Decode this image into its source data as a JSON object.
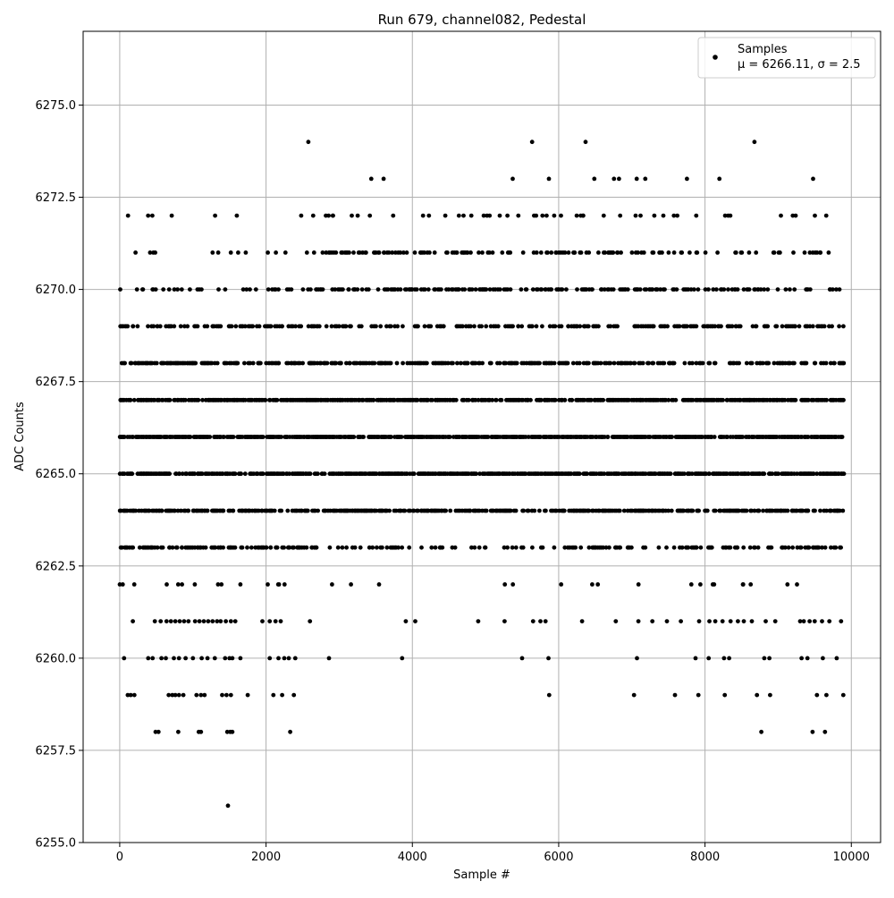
{
  "chart_data": {
    "type": "scatter",
    "title": "Run 679, channel082, Pedestal",
    "xlabel": "Sample #",
    "ylabel": "ADC Counts",
    "xlim": [
      -500,
      10400
    ],
    "ylim": [
      6255.0,
      6277.0
    ],
    "x_ticks": [
      0,
      2000,
      4000,
      6000,
      8000,
      10000
    ],
    "y_ticks": [
      6255.0,
      6257.5,
      6260.0,
      6262.5,
      6265.0,
      6267.5,
      6270.0,
      6272.5,
      6275.0
    ],
    "x_tick_labels": [
      "0",
      "2000",
      "4000",
      "6000",
      "8000",
      "10000"
    ],
    "y_tick_labels": [
      "6255.0",
      "6257.5",
      "6260.0",
      "6262.5",
      "6265.0",
      "6267.5",
      "6270.0",
      "6272.5",
      "6275.0"
    ],
    "grid": true,
    "legend_position": "top-right",
    "series": [
      {
        "name": "Samples",
        "stats_label": "μ = 6266.11, σ = 2.5",
        "color": "#000000",
        "n_samples": 9900,
        "mean": 6266.11,
        "sigma": 2.5,
        "sampled_levels": [
          {
            "y": 6256,
            "x": [
              1480
            ]
          },
          {
            "y": 6258,
            "x": [
              490,
              530,
              800,
              1080,
              1110,
              1470,
              1510,
              1540,
              2330,
              8770,
              9470,
              9640
            ]
          },
          {
            "y": 6259,
            "x": [
              110,
              150,
              200,
              670,
              720,
              760,
              810,
              870,
              1050,
              1110,
              1160,
              1400,
              1460,
              1520,
              1750,
              2100,
              2220,
              2380,
              5870,
              7030,
              7590,
              7910,
              8270,
              8710,
              8890,
              9530,
              9660,
              9890
            ]
          },
          {
            "y": 6260,
            "x": [
              60,
              390,
              450,
              570,
              630,
              740,
              810,
              900,
              1000,
              1120,
              1200,
              1300,
              1440,
              1500,
              1540,
              1650,
              2050,
              2170,
              2250,
              2310,
              2400,
              2860,
              3860,
              5500,
              5860,
              7070,
              7870,
              8050,
              8260,
              8330,
              8810,
              8880,
              9320,
              9400,
              9610,
              9800
            ]
          },
          {
            "y": 6261,
            "x": [
              180,
              480,
              560,
              640,
              700,
              760,
              820,
              880,
              940,
              1030,
              1090,
              1150,
              1210,
              1270,
              1330,
              1380,
              1450,
              1520,
              1580,
              1950,
              2050,
              2130,
              2200,
              2600,
              3910,
              4040,
              4900,
              5260,
              5650,
              5750,
              5820,
              6320,
              6780,
              7090,
              7280,
              7480,
              7670,
              7920,
              8060,
              8140,
              8240,
              8350,
              8450,
              8530,
              8640,
              8830,
              8960,
              9300,
              9350,
              9430,
              9500,
              9600,
              9700,
              9860
            ]
          }
        ]
      }
    ]
  }
}
